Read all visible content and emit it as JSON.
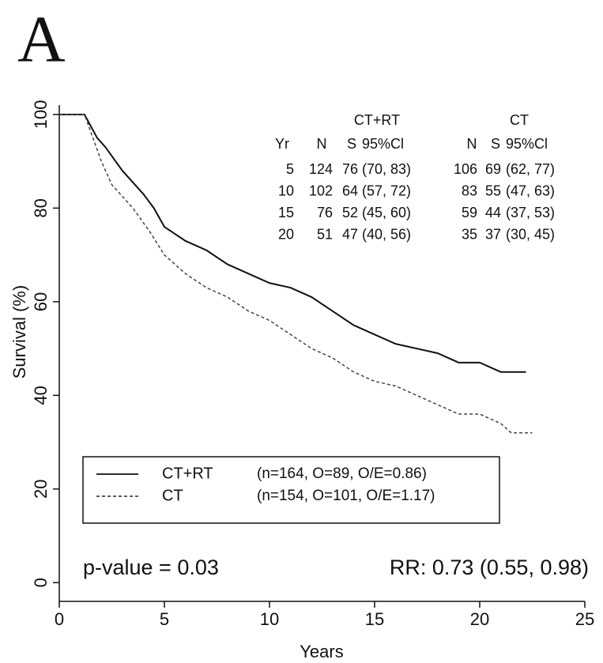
{
  "panel_label": "A",
  "chart_data": {
    "type": "line",
    "xlabel": "Years",
    "ylabel": "Survival (%)",
    "xlim": [
      0,
      25
    ],
    "xticks": [
      0,
      5,
      10,
      15,
      20,
      25
    ],
    "ylim": [
      -4,
      102
    ],
    "yticks": [
      0,
      20,
      40,
      60,
      80,
      100
    ],
    "series": [
      {
        "name": "CT+RT",
        "legend_detail": "(n=164, O=89, O/E=0.86)",
        "color": "#111111",
        "dash": "none",
        "x": [
          0,
          1.2,
          1.8,
          2.2,
          3,
          4,
          4.5,
          5,
          6,
          7,
          8,
          9,
          10,
          11,
          12,
          13,
          14,
          15,
          16,
          17,
          18,
          19,
          20,
          21,
          22.2
        ],
        "values": [
          100,
          100,
          95,
          93,
          88,
          83,
          80,
          76,
          73,
          71,
          68,
          66,
          64,
          63,
          61,
          58,
          55,
          53,
          51,
          50,
          49,
          47,
          47,
          45,
          45
        ]
      },
      {
        "name": "CT",
        "legend_detail": "(n=154, O=101, O/E=1.17)",
        "color": "#444444",
        "dash": "4,3",
        "x": [
          0,
          1.2,
          2,
          2.5,
          3.5,
          4.3,
          5,
          6,
          7,
          8,
          9,
          10,
          11,
          12,
          13,
          14,
          15,
          16,
          17,
          18,
          19,
          20,
          21,
          21.5,
          22.5
        ],
        "values": [
          100,
          100,
          90,
          85,
          80,
          75,
          70,
          66,
          63,
          61,
          58,
          56,
          53,
          50,
          48,
          45,
          43,
          42,
          40,
          38,
          36,
          36,
          34,
          32,
          32
        ]
      }
    ],
    "annotations": [
      "p-value = 0.03",
      "RR: 0.73 (0.55, 0.98)"
    ],
    "survival_table": {
      "groups": [
        "CT+RT",
        "CT"
      ],
      "columns": [
        "Yr",
        "N",
        "S",
        "95%Cl",
        "N",
        "S",
        "95%Cl"
      ],
      "rows": [
        [
          "5",
          "124",
          "76",
          "(70, 83)",
          "106",
          "69",
          "(62, 77)"
        ],
        [
          "10",
          "102",
          "64",
          "(57, 72)",
          "83",
          "55",
          "(47, 63)"
        ],
        [
          "15",
          "76",
          "52",
          "(45, 60)",
          "59",
          "44",
          "(37, 53)"
        ],
        [
          "20",
          "51",
          "47",
          "(40, 56)",
          "35",
          "37",
          "(30, 45)"
        ]
      ]
    }
  }
}
